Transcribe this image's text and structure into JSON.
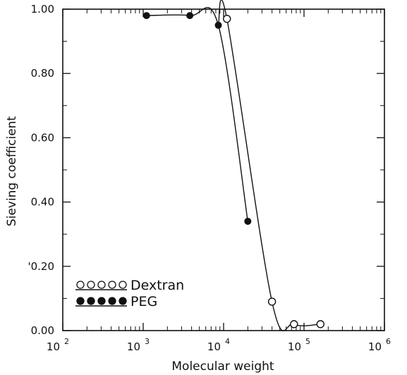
{
  "chart_data": {
    "type": "line",
    "xlabel": "Molecular weight",
    "ylabel": "Sieving coefficient",
    "x_scale": "log",
    "xlim": [
      100,
      1000000
    ],
    "ylim": [
      0,
      1
    ],
    "x_ticks": [
      {
        "base": "10",
        "exp": "2"
      },
      {
        "base": "10",
        "exp": "3"
      },
      {
        "base": "10",
        "exp": "4"
      },
      {
        "base": "10",
        "exp": "5"
      },
      {
        "base": "10",
        "exp": "6"
      }
    ],
    "y_ticks": [
      "0.00",
      "'0.20",
      "0.40",
      "0.60",
      "0.80",
      "1.00"
    ],
    "grid": false,
    "legend_position": "bottom-left",
    "series": [
      {
        "name": "Dextran",
        "marker": "open-circle",
        "legend_marker": "ooooo",
        "x": [
          11000,
          40000,
          75000,
          160000
        ],
        "y": [
          0.97,
          0.09,
          0.02,
          0.02
        ]
      },
      {
        "name": "PEG",
        "marker": "filled-circle",
        "legend_marker": "●●●●●",
        "x": [
          1100,
          3800,
          8600,
          20000
        ],
        "y": [
          0.98,
          0.98,
          0.95,
          0.34
        ]
      }
    ]
  }
}
